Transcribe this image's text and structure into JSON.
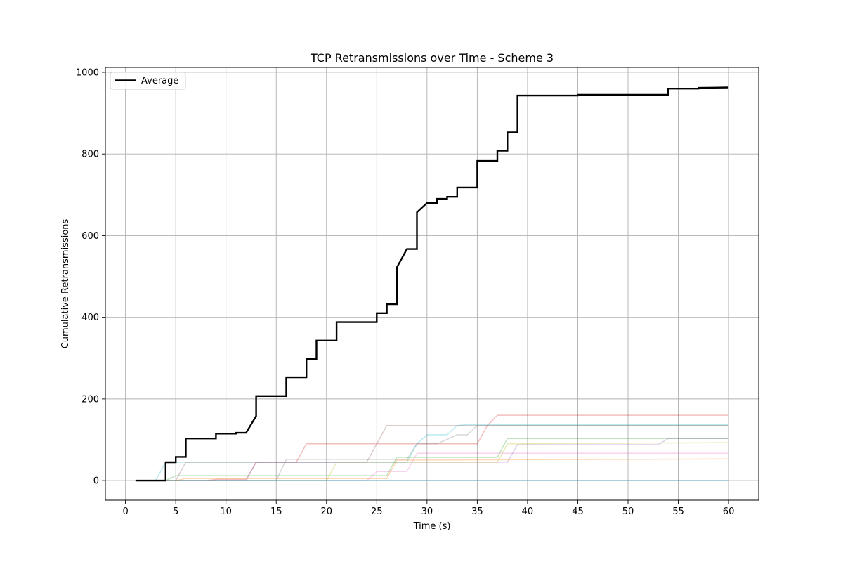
{
  "chart_data": {
    "type": "line",
    "title": "TCP Retransmissions over Time - Scheme 3",
    "xlabel": "Time (s)",
    "ylabel": "Cumulative Retransmissions",
    "xlim": [
      -2,
      63
    ],
    "ylim": [
      -48,
      1012
    ],
    "xticks": [
      0,
      5,
      10,
      15,
      20,
      25,
      30,
      35,
      40,
      45,
      50,
      55,
      60
    ],
    "yticks": [
      0,
      200,
      400,
      600,
      800,
      1000
    ],
    "grid": true,
    "legend": {
      "position": "upper-left",
      "entries": [
        {
          "label": "Average",
          "color": "#000000"
        }
      ]
    },
    "series": [
      {
        "name": "Average",
        "color": "#000000",
        "width": 2.4,
        "opacity": 1,
        "points": [
          [
            1,
            0
          ],
          [
            4,
            0
          ],
          [
            4,
            45
          ],
          [
            5,
            45
          ],
          [
            5,
            58
          ],
          [
            6,
            58
          ],
          [
            6,
            103
          ],
          [
            9,
            103
          ],
          [
            9,
            115
          ],
          [
            11,
            115
          ],
          [
            11,
            117
          ],
          [
            12,
            117
          ],
          [
            13,
            158
          ],
          [
            13,
            207
          ],
          [
            16,
            207
          ],
          [
            16,
            253
          ],
          [
            18,
            253
          ],
          [
            18,
            298
          ],
          [
            19,
            298
          ],
          [
            19,
            343
          ],
          [
            21,
            343
          ],
          [
            21,
            388
          ],
          [
            25,
            388
          ],
          [
            25,
            410
          ],
          [
            26,
            410
          ],
          [
            26,
            432
          ],
          [
            27,
            432
          ],
          [
            27,
            522
          ],
          [
            28,
            567
          ],
          [
            29,
            567
          ],
          [
            29,
            657
          ],
          [
            30,
            680
          ],
          [
            31,
            680
          ],
          [
            31,
            690
          ],
          [
            32,
            690
          ],
          [
            32,
            695
          ],
          [
            33,
            695
          ],
          [
            33,
            718
          ],
          [
            35,
            718
          ],
          [
            35,
            783
          ],
          [
            37,
            783
          ],
          [
            37,
            808
          ],
          [
            38,
            808
          ],
          [
            38,
            853
          ],
          [
            39,
            853
          ],
          [
            39,
            943
          ],
          [
            45,
            943
          ],
          [
            45,
            945
          ],
          [
            54,
            945
          ],
          [
            54,
            960
          ],
          [
            57,
            960
          ],
          [
            57,
            962
          ],
          [
            60,
            963
          ]
        ]
      },
      {
        "color": "#d62728",
        "width": 1.5,
        "opacity": 0.3,
        "points": [
          [
            1,
            0
          ],
          [
            7,
            0
          ],
          [
            8,
            0
          ],
          [
            9,
            3
          ],
          [
            12,
            3
          ],
          [
            13,
            45
          ],
          [
            17,
            45
          ],
          [
            18,
            90
          ],
          [
            35,
            90
          ],
          [
            36,
            135
          ],
          [
            37,
            160
          ],
          [
            60,
            160
          ]
        ]
      },
      {
        "color": "#17becf",
        "width": 1.5,
        "opacity": 0.3,
        "points": [
          [
            1,
            0
          ],
          [
            3,
            0
          ],
          [
            4,
            45
          ],
          [
            28,
            45
          ],
          [
            29,
            90
          ],
          [
            30,
            112
          ],
          [
            32,
            112
          ],
          [
            33,
            135
          ],
          [
            34,
            137
          ],
          [
            60,
            137
          ]
        ]
      },
      {
        "color": "#8c564b",
        "width": 1.5,
        "opacity": 0.3,
        "points": [
          [
            1,
            0
          ],
          [
            5,
            0
          ],
          [
            6,
            45
          ],
          [
            12,
            45
          ],
          [
            13,
            45
          ],
          [
            24,
            45
          ],
          [
            25,
            90
          ],
          [
            26,
            135
          ],
          [
            34,
            135
          ],
          [
            35,
            135
          ],
          [
            60,
            135
          ]
        ]
      },
      {
        "color": "#2ca02c",
        "width": 1.5,
        "opacity": 0.3,
        "points": [
          [
            1,
            0
          ],
          [
            4,
            0
          ],
          [
            5,
            12
          ],
          [
            26,
            12
          ],
          [
            27,
            57
          ],
          [
            37,
            57
          ],
          [
            38,
            103
          ],
          [
            60,
            103
          ]
        ]
      },
      {
        "color": "#7f7f7f",
        "width": 1.5,
        "opacity": 0.3,
        "points": [
          [
            1,
            0
          ],
          [
            15,
            0
          ],
          [
            16,
            52
          ],
          [
            26,
            52
          ],
          [
            27,
            52
          ],
          [
            28,
            52
          ],
          [
            29,
            90
          ],
          [
            30,
            90
          ],
          [
            31,
            90
          ],
          [
            33,
            112
          ],
          [
            34,
            112
          ],
          [
            35,
            135
          ],
          [
            60,
            135
          ]
        ]
      },
      {
        "color": "#9467bd",
        "width": 1.5,
        "opacity": 0.3,
        "points": [
          [
            1,
            0
          ],
          [
            12,
            0
          ],
          [
            13,
            45
          ],
          [
            25,
            45
          ],
          [
            26,
            45
          ],
          [
            37,
            45
          ],
          [
            38,
            45
          ],
          [
            39,
            88
          ],
          [
            53,
            88
          ],
          [
            54,
            103
          ],
          [
            60,
            103
          ]
        ]
      },
      {
        "color": "#bcbd22",
        "width": 1.5,
        "opacity": 0.3,
        "points": [
          [
            1,
            0
          ],
          [
            20,
            0
          ],
          [
            21,
            45
          ],
          [
            27,
            45
          ],
          [
            28,
            45
          ],
          [
            37,
            45
          ],
          [
            38,
            90
          ],
          [
            60,
            93
          ]
        ]
      },
      {
        "color": "#e377c2",
        "width": 1.5,
        "opacity": 0.3,
        "points": [
          [
            1,
            0
          ],
          [
            24,
            0
          ],
          [
            25,
            22
          ],
          [
            28,
            22
          ],
          [
            29,
            67
          ],
          [
            60,
            67
          ]
        ]
      },
      {
        "color": "#ff7f0e",
        "width": 1.5,
        "opacity": 0.3,
        "points": [
          [
            1,
            0
          ],
          [
            5,
            0
          ],
          [
            6,
            5
          ],
          [
            25,
            5
          ],
          [
            26,
            5
          ],
          [
            27,
            50
          ],
          [
            60,
            53
          ]
        ]
      },
      {
        "color": "#1f77b4",
        "width": 1.5,
        "opacity": 0.3,
        "points": [
          [
            1,
            0
          ],
          [
            60,
            0
          ]
        ]
      },
      {
        "color": "#17becf",
        "width": 1.5,
        "opacity": 0.3,
        "points": [
          [
            1,
            0
          ],
          [
            59,
            0
          ],
          [
            60,
            0
          ]
        ]
      }
    ]
  }
}
